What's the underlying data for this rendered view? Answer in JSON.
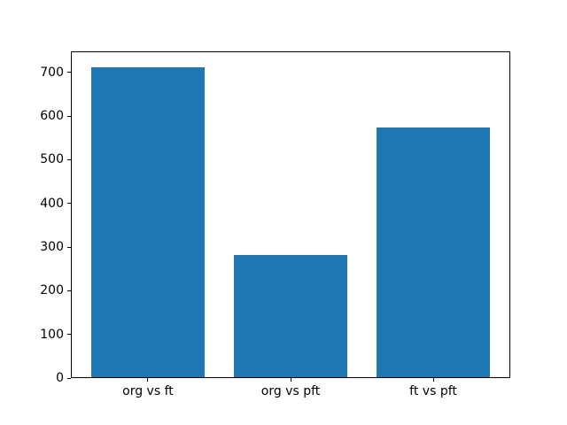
{
  "chart_data": {
    "type": "bar",
    "title": "",
    "xlabel": "",
    "ylabel": "",
    "categories": [
      "org vs ft",
      "org vs pft",
      "ft vs pft"
    ],
    "values": [
      712,
      281,
      574
    ],
    "yticks": [
      0,
      100,
      200,
      300,
      400,
      500,
      600,
      700
    ],
    "ylim": [
      0,
      748
    ],
    "xlim": [
      -0.54,
      2.54
    ],
    "bar_width": 0.8,
    "bar_color": "#1f77b4",
    "axis_color": "#000000",
    "background": "#ffffff",
    "grid": false,
    "legend": "none"
  }
}
